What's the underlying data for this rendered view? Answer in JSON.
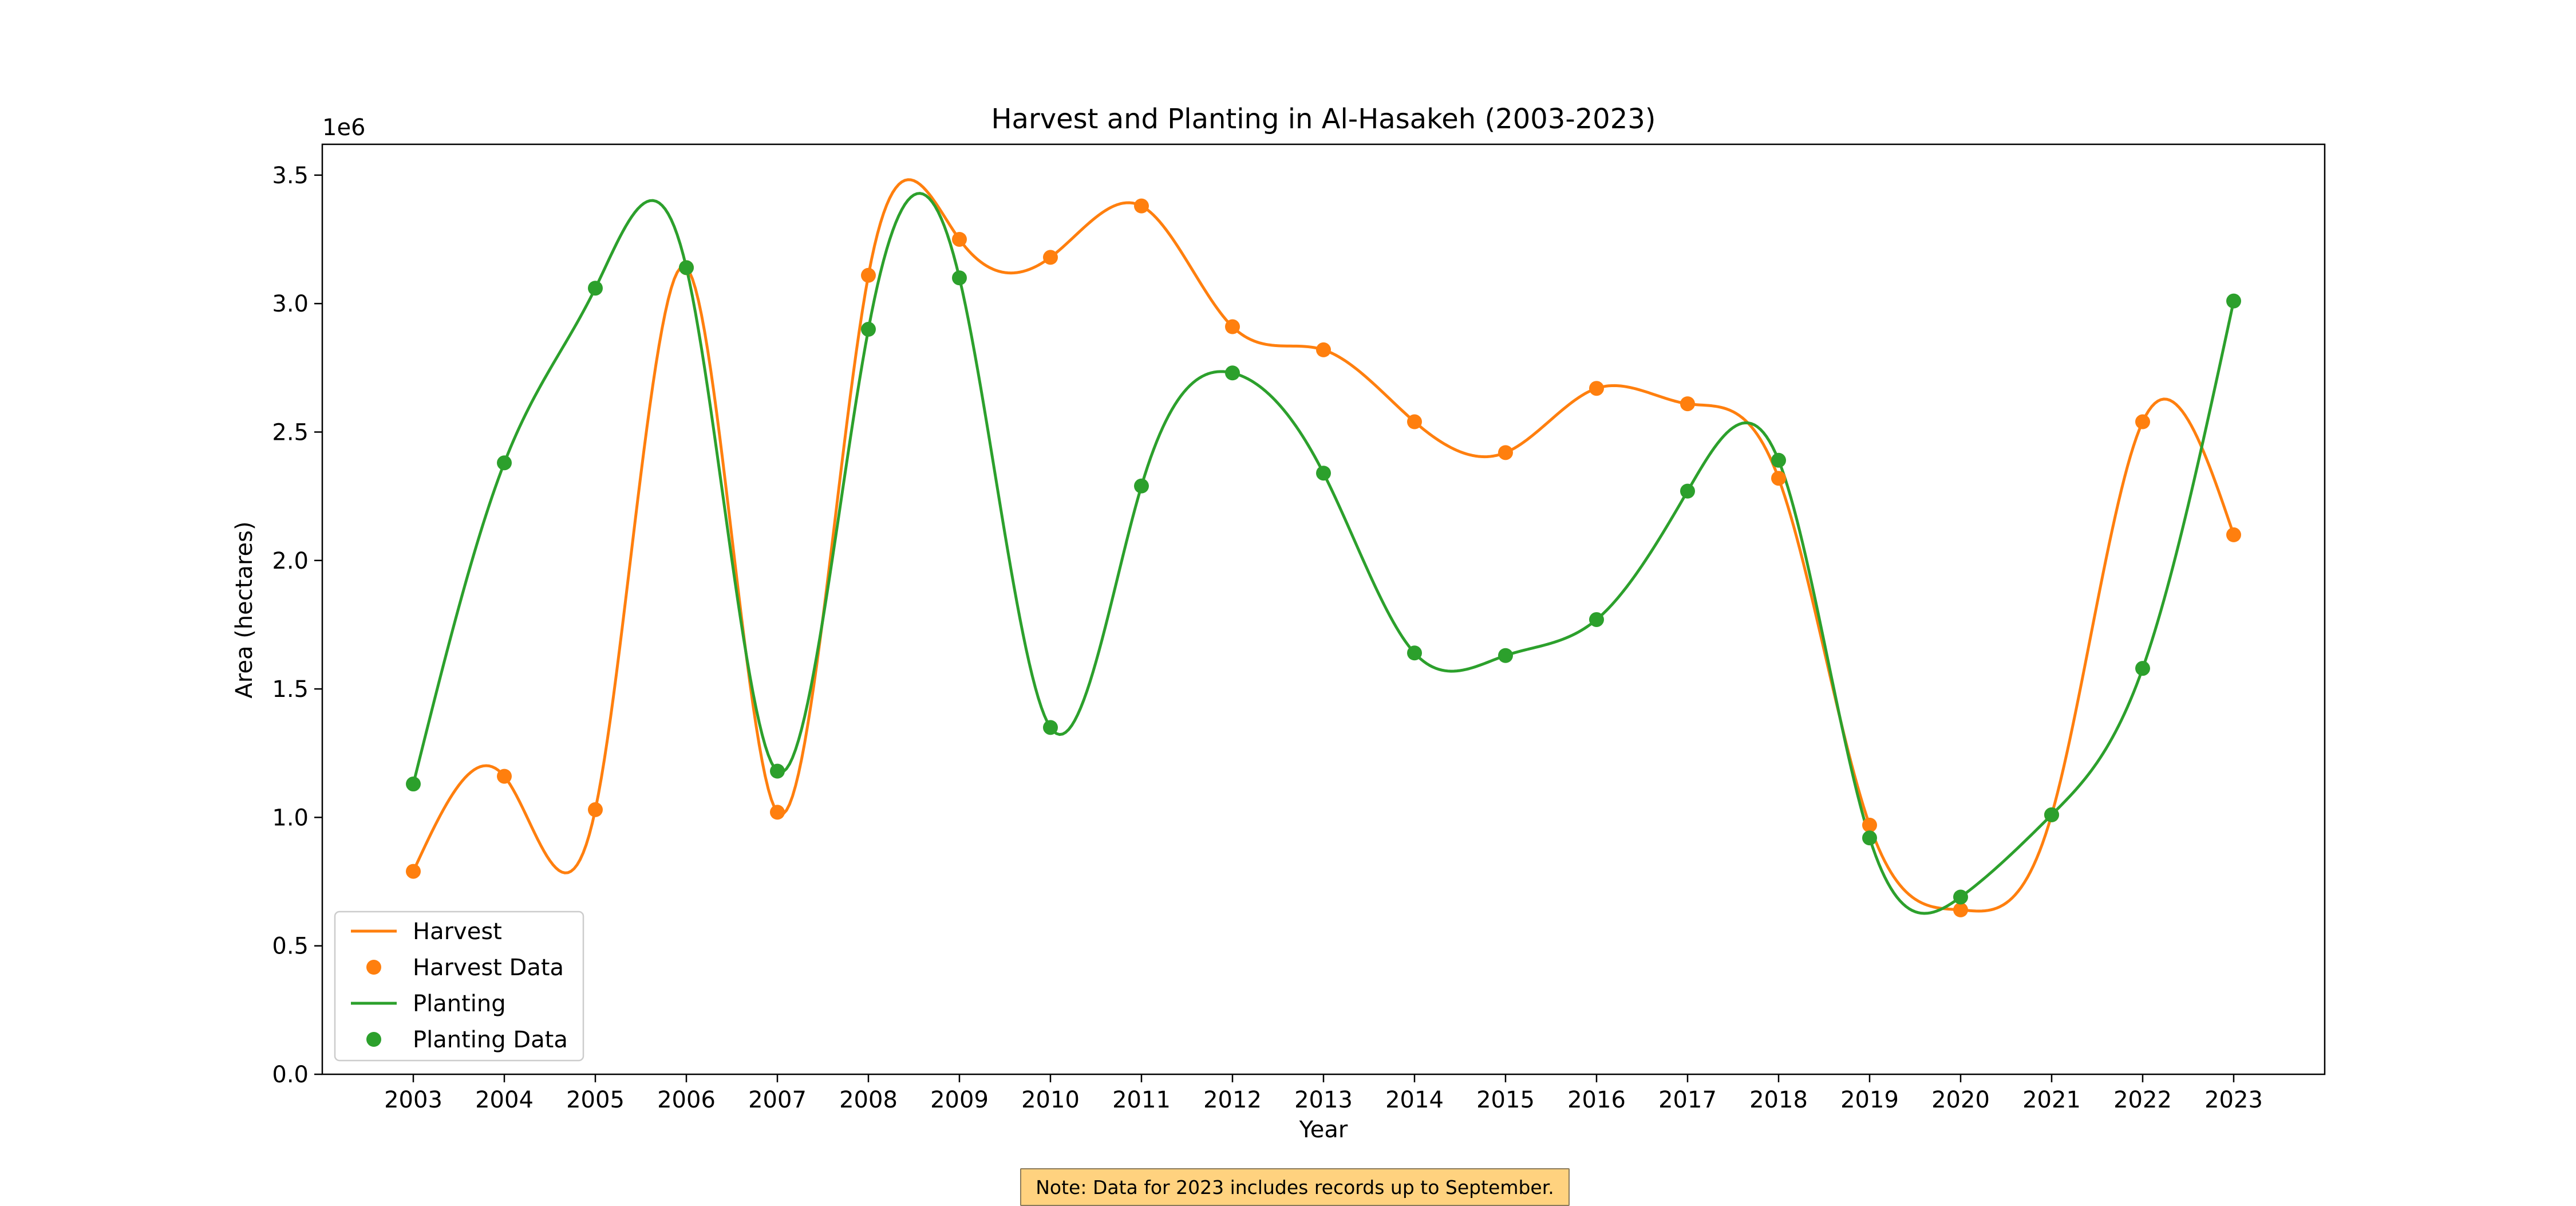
{
  "chart_data": {
    "type": "line",
    "title": "Harvest and Planting in Al-Hasakeh (2003-2023)",
    "xlabel": "Year",
    "ylabel": "Area (hectares)",
    "y_offset_label": "1e6",
    "x": [
      2003,
      2004,
      2005,
      2006,
      2007,
      2008,
      2009,
      2010,
      2011,
      2012,
      2013,
      2014,
      2015,
      2016,
      2017,
      2018,
      2019,
      2020,
      2021,
      2022,
      2023
    ],
    "xticks": [
      "2003",
      "2004",
      "2005",
      "2006",
      "2007",
      "2008",
      "2009",
      "2010",
      "2011",
      "2012",
      "2013",
      "2014",
      "2015",
      "2016",
      "2017",
      "2018",
      "2019",
      "2020",
      "2021",
      "2022",
      "2023"
    ],
    "yticks": [
      "0.0",
      "0.5",
      "1.0",
      "1.5",
      "2.0",
      "2.5",
      "3.0",
      "3.5"
    ],
    "ylim": [
      0,
      3.62
    ],
    "y_unit_multiplier": 1000000,
    "grid": false,
    "legend_position": "lower-left",
    "series": [
      {
        "name": "Harvest",
        "color": "#ff7f0e",
        "values": [
          0.79,
          1.16,
          1.03,
          3.14,
          1.02,
          3.11,
          3.25,
          3.18,
          3.38,
          2.91,
          2.82,
          2.54,
          2.42,
          2.67,
          2.61,
          2.32,
          0.97,
          0.64,
          1.01,
          2.54,
          2.1
        ]
      },
      {
        "name": "Planting",
        "color": "#2ca02c",
        "values": [
          1.13,
          2.38,
          3.06,
          3.14,
          1.18,
          2.9,
          3.1,
          1.35,
          2.29,
          2.73,
          2.34,
          1.64,
          1.63,
          1.77,
          2.27,
          2.39,
          0.92,
          0.69,
          1.01,
          1.58,
          3.01
        ]
      }
    ],
    "legend": [
      "Harvest",
      "Harvest Data",
      "Planting",
      "Planting Data"
    ]
  },
  "note": "Note: Data for 2023 includes records up to September."
}
